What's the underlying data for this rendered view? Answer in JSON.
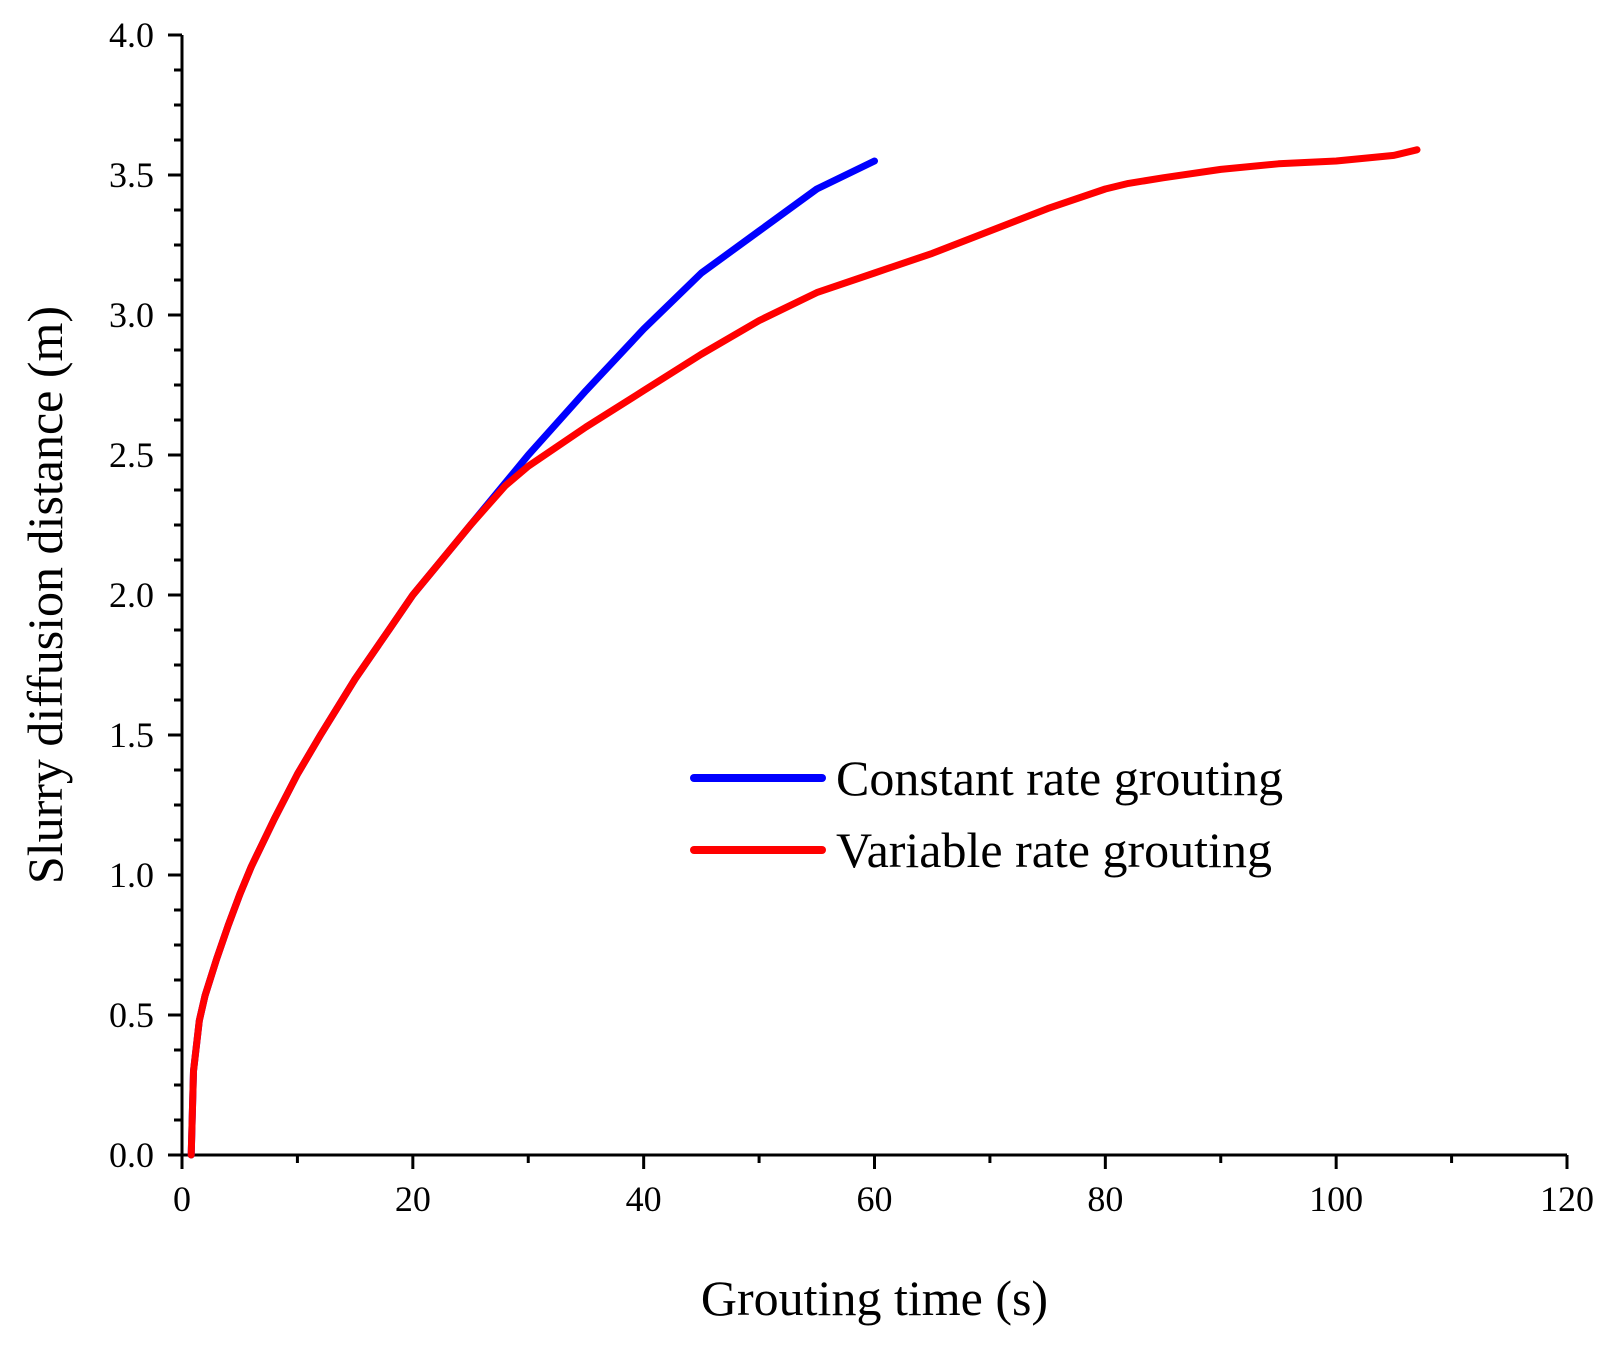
{
  "chart_data": {
    "type": "line",
    "title": "",
    "xlabel": "Grouting time (s)",
    "ylabel": "Slurry diffusion distance (m)",
    "xlim": [
      0,
      120
    ],
    "ylim": [
      0.0,
      4.0
    ],
    "xticks": [
      0,
      20,
      40,
      60,
      80,
      100,
      120
    ],
    "xtick_labels": [
      "0",
      "20",
      "40",
      "60",
      "80",
      "100",
      "120"
    ],
    "yticks": [
      0.0,
      0.5,
      1.0,
      1.5,
      2.0,
      2.5,
      3.0,
      3.5,
      4.0
    ],
    "ytick_labels": [
      "0.0",
      "0.5",
      "1.0",
      "1.5",
      "2.0",
      "2.5",
      "3.0",
      "3.5",
      "4.0"
    ],
    "grid": false,
    "legend_position": "center-right",
    "series": [
      {
        "name": "Constant rate grouting",
        "color": "#0000ff",
        "x": [
          0.8,
          1.0,
          1.5,
          2,
          3,
          4,
          5,
          6,
          8,
          10,
          12,
          15,
          18,
          20,
          22,
          25,
          28,
          30,
          35,
          40,
          45,
          50,
          55,
          60
        ],
        "y": [
          0.0,
          0.3,
          0.48,
          0.57,
          0.7,
          0.82,
          0.93,
          1.03,
          1.2,
          1.36,
          1.5,
          1.7,
          1.88,
          2.0,
          2.1,
          2.25,
          2.4,
          2.5,
          2.73,
          2.95,
          3.15,
          3.3,
          3.45,
          3.55
        ]
      },
      {
        "name": "Variable rate grouting",
        "color": "#ff0000",
        "x": [
          0.8,
          1.0,
          1.5,
          2,
          3,
          4,
          5,
          6,
          8,
          10,
          12,
          15,
          18,
          20,
          22,
          25,
          28,
          30,
          35,
          40,
          45,
          50,
          55,
          60,
          65,
          70,
          75,
          80,
          82,
          85,
          90,
          95,
          100,
          105,
          107
        ],
        "y": [
          0.0,
          0.3,
          0.48,
          0.57,
          0.7,
          0.82,
          0.93,
          1.03,
          1.2,
          1.36,
          1.5,
          1.7,
          1.88,
          2.0,
          2.1,
          2.25,
          2.39,
          2.46,
          2.6,
          2.73,
          2.86,
          2.98,
          3.08,
          3.15,
          3.22,
          3.3,
          3.38,
          3.45,
          3.47,
          3.49,
          3.52,
          3.54,
          3.55,
          3.57,
          3.59
        ]
      }
    ]
  }
}
